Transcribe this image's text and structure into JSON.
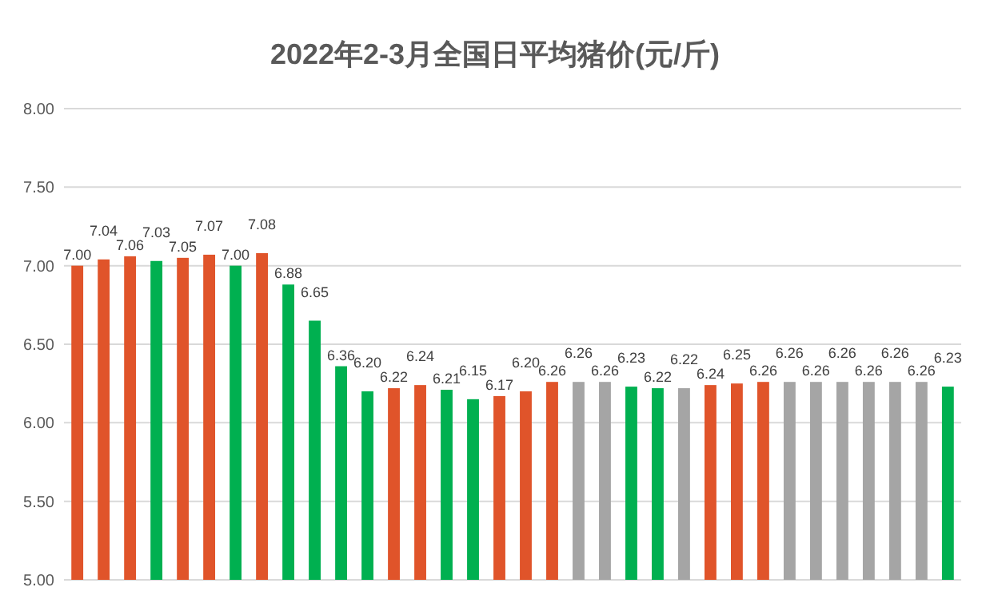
{
  "chart_data": {
    "type": "bar",
    "title": "2022年2-3月全国日平均猪价(元/斤)",
    "categories": [
      null,
      null,
      null,
      null,
      null,
      null,
      null,
      null,
      null,
      null,
      null,
      null,
      null,
      null,
      null,
      null,
      null,
      null,
      null,
      null,
      null,
      null,
      null,
      null,
      null,
      null,
      null,
      null,
      null,
      null,
      null,
      null,
      null,
      null
    ],
    "values": [
      7.0,
      7.04,
      7.06,
      7.03,
      7.05,
      7.07,
      7.0,
      7.08,
      6.88,
      6.65,
      6.36,
      6.2,
      6.22,
      6.24,
      6.21,
      6.15,
      6.17,
      6.2,
      6.26,
      6.26,
      6.26,
      6.23,
      6.22,
      6.22,
      6.24,
      6.25,
      6.26,
      6.26,
      6.26,
      6.26,
      6.26,
      6.26,
      6.26,
      6.23
    ],
    "colors": [
      "#e0542a",
      "#e0542a",
      "#e0542a",
      "#00b050",
      "#e0542a",
      "#e0542a",
      "#00b050",
      "#e0542a",
      "#00b050",
      "#00b050",
      "#00b050",
      "#00b050",
      "#e0542a",
      "#e0542a",
      "#00b050",
      "#00b050",
      "#e0542a",
      "#e0542a",
      "#e0542a",
      "#a5a5a5",
      "#a5a5a5",
      "#00b050",
      "#00b050",
      "#a5a5a5",
      "#e0542a",
      "#e0542a",
      "#e0542a",
      "#a5a5a5",
      "#a5a5a5",
      "#a5a5a5",
      "#a5a5a5",
      "#a5a5a5",
      "#a5a5a5",
      "#00b050"
    ],
    "ylim": [
      5,
      8
    ],
    "yticks": [
      {
        "value": 5,
        "label": "5.00"
      },
      {
        "value": 5.5,
        "label": "5.50"
      },
      {
        "value": 6,
        "label": "6.00"
      },
      {
        "value": 6.5,
        "label": "6.50"
      },
      {
        "value": 7,
        "label": "7.00"
      },
      {
        "value": 7.5,
        "label": "7.50"
      },
      {
        "value": 8,
        "label": "8.00"
      }
    ],
    "value_labels": [
      "7.00",
      "7.04",
      "7.06",
      "7.03",
      "7.05",
      "7.07",
      "7.00",
      "7.08",
      "6.88",
      "6.65",
      "6.36",
      "6.20",
      "6.22",
      "6.24",
      "6.21",
      "6.15",
      "6.17",
      "6.20",
      "6.26",
      "6.26",
      "6.26",
      "6.23",
      "6.22",
      "6.22",
      "6.24",
      "6.25",
      "6.26",
      "6.26",
      "6.26",
      "6.26",
      "6.26",
      "6.26",
      "6.26",
      "6.23"
    ],
    "grid": "y"
  }
}
